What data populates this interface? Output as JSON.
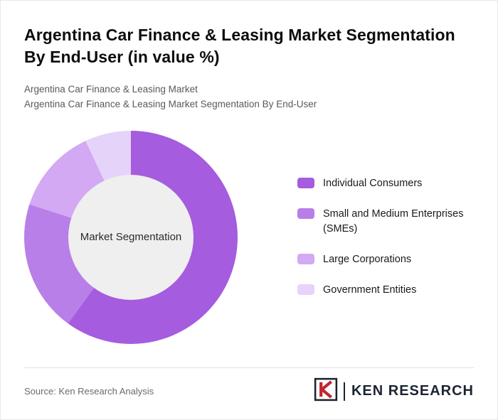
{
  "title": "Argentina Car Finance & Leasing Market Segmentation By End-User (in value %)",
  "subtitle": {
    "line1": "Argentina Car Finance & Leasing Market",
    "line2": "Argentina Car Finance & Leasing Market Segmentation By End-User"
  },
  "chart_data": {
    "type": "pie",
    "variant": "donut",
    "title": "Argentina Car Finance & Leasing Market Segmentation By End-User (in value %)",
    "center_label": "Market Segmentation",
    "categories": [
      "Individual Consumers",
      "Small and Medium Enterprises (SMEs)",
      "Large Corporations",
      "Government Entities"
    ],
    "values": [
      60,
      20,
      13,
      7
    ],
    "colors": [
      "#a55cdf",
      "#b97fe8",
      "#d2a9f2",
      "#e6d3fa"
    ],
    "start_angle_deg": 0,
    "direction": "clockwise",
    "legend_position": "right",
    "value_labels_shown": false,
    "hole_color": "#efefef"
  },
  "footer": {
    "source": "Source: Ken Research Analysis",
    "logo_text": "KEN RESEARCH",
    "logo_mark": "ken-research-k-icon",
    "logo_accent_color": "#c0272d",
    "logo_dark_color": "#1b2430"
  }
}
